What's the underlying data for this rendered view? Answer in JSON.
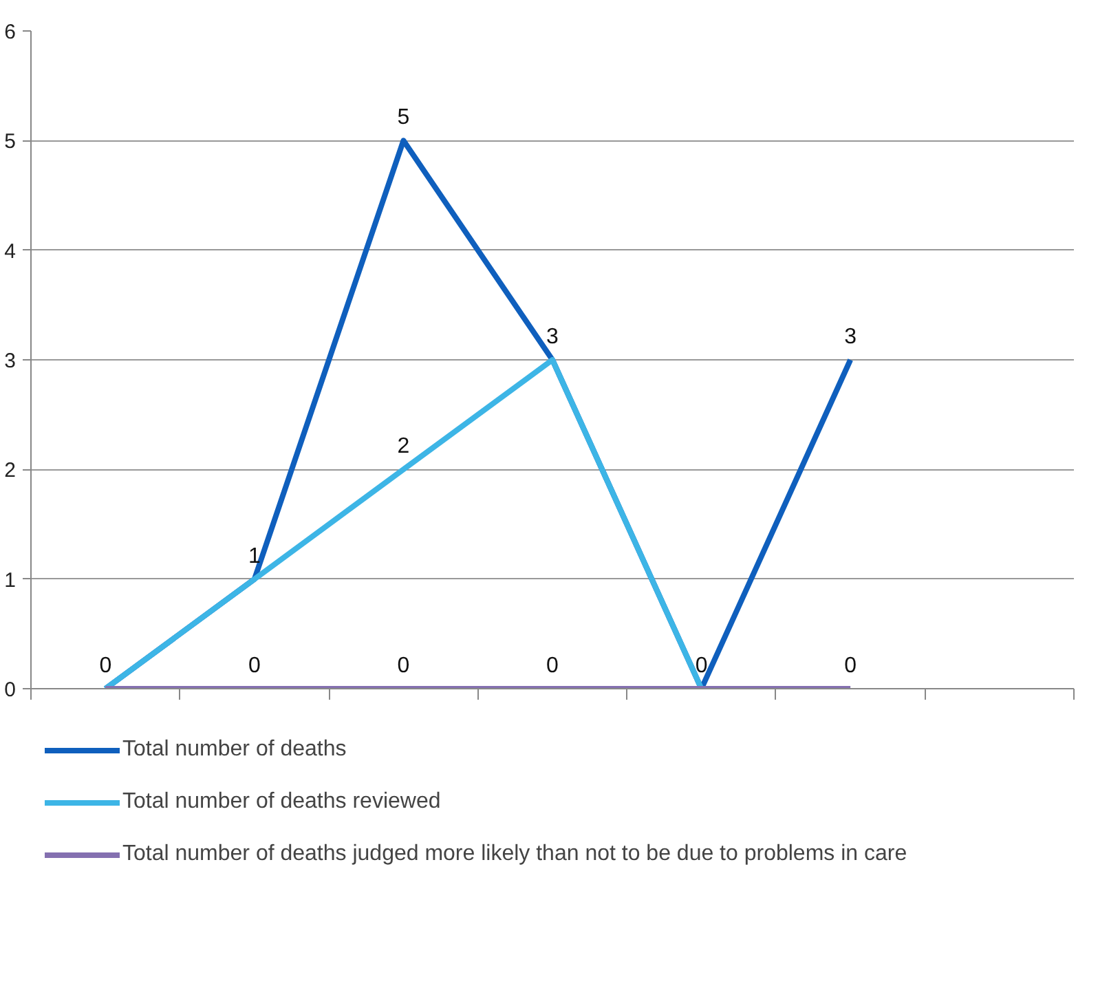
{
  "chart_data": {
    "type": "line",
    "categories": [
      null,
      null,
      null,
      null,
      null,
      null,
      null
    ],
    "series": [
      {
        "name": "Total number of deaths",
        "color": "#0f5fbd",
        "values": [
          0,
          1,
          5,
          3,
          0,
          3,
          null
        ],
        "value_labels": [
          "0",
          "1",
          "5",
          "3",
          "0",
          "3",
          null
        ]
      },
      {
        "name": "Total number of deaths reviewed",
        "color": "#3db5e6",
        "values": [
          0,
          1,
          2,
          3,
          0,
          null,
          null
        ],
        "value_labels": [
          null,
          null,
          "2",
          null,
          null,
          null,
          null
        ]
      },
      {
        "name": "Total number of deaths judged more likely than not to be due to problems in care",
        "color": "#8470b0",
        "values": [
          0,
          0,
          0,
          0,
          0,
          0,
          null
        ],
        "value_labels": [
          null,
          "0",
          "0",
          "0",
          null,
          "0",
          null
        ]
      }
    ],
    "ylim": [
      0,
      6
    ],
    "yticks": [
      0,
      1,
      2,
      3,
      4,
      5,
      6
    ],
    "grid": "y",
    "legend": "bottom",
    "marker": "none",
    "line_style": "solid"
  }
}
